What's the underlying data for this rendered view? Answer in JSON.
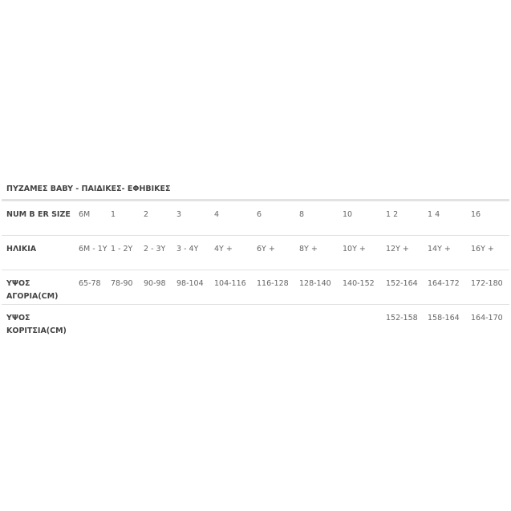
{
  "title": "ΠΥΖΑΜΕΣ BABY - ΠΑΙΔΙΚΕΣ- ΕΦΗΒΙΚΕΣ",
  "rows": [
    {
      "label": "NUM B ER SIZE",
      "cells": [
        "6M",
        "1",
        "2",
        "3",
        "4",
        "6",
        "8",
        "10",
        "1 2",
        "1 4",
        "16"
      ]
    },
    {
      "label": "ΗΛΙΚΙΑ",
      "cells": [
        "6M - 1Y",
        "1 - 2Y",
        "2 - 3Y",
        "3 - 4Y",
        "4Y +",
        "6Y +",
        "8Y +",
        "10Y +",
        "12Y +",
        "14Y +",
        "16Y +"
      ]
    },
    {
      "label": "ΥΨΟΣ ΑΓΟΡΙΑ(CM)",
      "cells": [
        "65-78",
        "78-90",
        "90-98",
        "98-104",
        "104-116",
        "116-128",
        "128-140",
        "140-152",
        "152-164",
        "164-172",
        "172-180"
      ]
    },
    {
      "label": "ΥΨΟΣ ΚΟΡΙΤΣΙΑ(CM)",
      "cells": [
        "",
        "",
        "",
        "",
        "",
        "",
        "",
        "",
        "152-158",
        "158-164",
        "164-170"
      ]
    }
  ]
}
